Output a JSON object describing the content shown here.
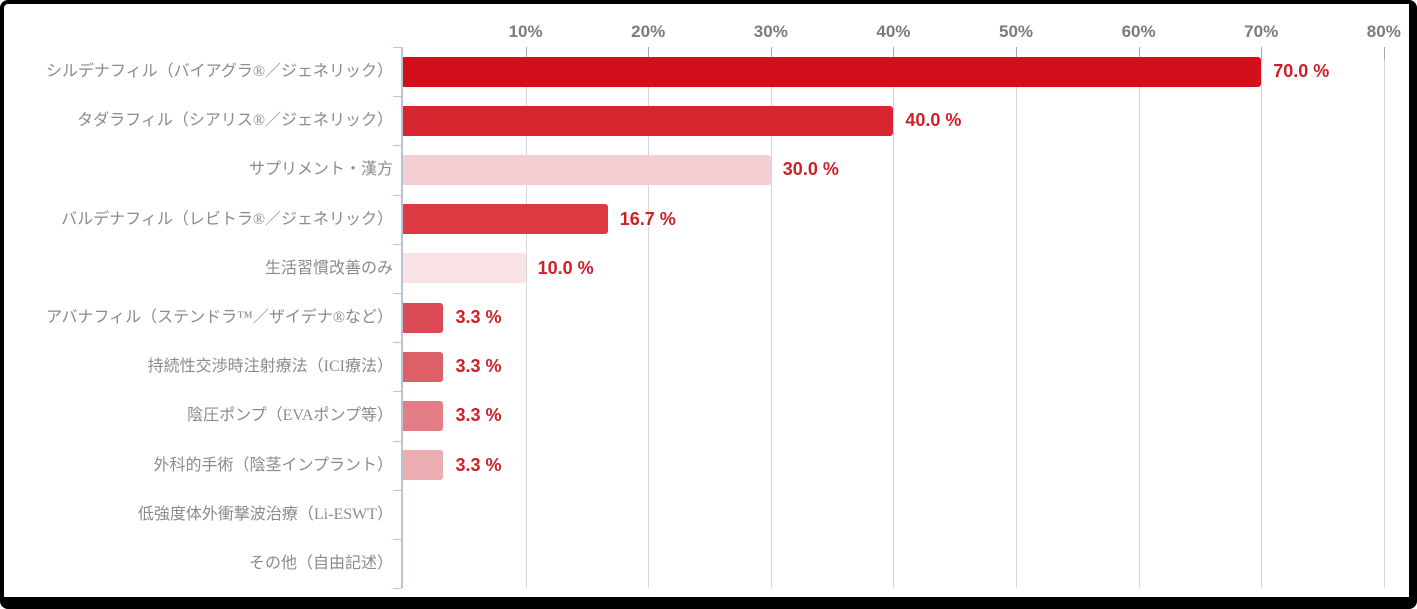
{
  "chart_data": {
    "type": "bar",
    "orientation": "horizontal",
    "title": "",
    "xlabel": "",
    "ylabel": "",
    "xlim": [
      0,
      80
    ],
    "grid": true,
    "axis_ticks": [
      "10%",
      "20%",
      "30%",
      "40%",
      "50%",
      "60%",
      "70%",
      "80%"
    ],
    "tick_values": [
      10,
      20,
      30,
      40,
      50,
      60,
      70,
      80
    ],
    "categories": [
      "シルデナフィル（バイアグラ®／ジェネリック）",
      "タダラフィル（シアリス®／ジェネリック）",
      "サプリメント・漢方",
      "バルデナフィル（レビトラ®／ジェネリック）",
      "生活習慣改善のみ",
      "アバナフィル（ステンドラ™／ザイデナ®など）",
      "持続性交渉時注射療法（ICI療法）",
      "陰圧ポンプ（EVAポンプ等）",
      "外科的手術（陰茎インプラント）",
      "低強度体外衝撃波治療（Li-ESWT）",
      "その他（自由記述）"
    ],
    "values": [
      70.0,
      40.0,
      30.0,
      16.7,
      10.0,
      3.3,
      3.3,
      3.3,
      3.3,
      0,
      0
    ],
    "value_labels": [
      "70.0 %",
      "40.0 %",
      "30.0 %",
      "16.7 %",
      "10.0 %",
      "3.3 %",
      "3.3 %",
      "3.3 %",
      "3.3 %",
      "",
      ""
    ],
    "bar_colors": [
      "#d40f1c",
      "#d7262f",
      "#f4ced3",
      "#dc3942",
      "#fae3e5",
      "#d94a55",
      "#dd6069",
      "#e37e86",
      "#edacb2",
      null,
      null
    ],
    "colors": {
      "value_label": "#cf1f27",
      "tick_label": "#7b7b7b",
      "category_label": "#8b8b8b",
      "axis_line": "#b9c3d3",
      "gridline": "#d6d6d6",
      "grid_top_tick": "#a9a9a9",
      "frame_border": "#000000"
    },
    "legend": null
  }
}
